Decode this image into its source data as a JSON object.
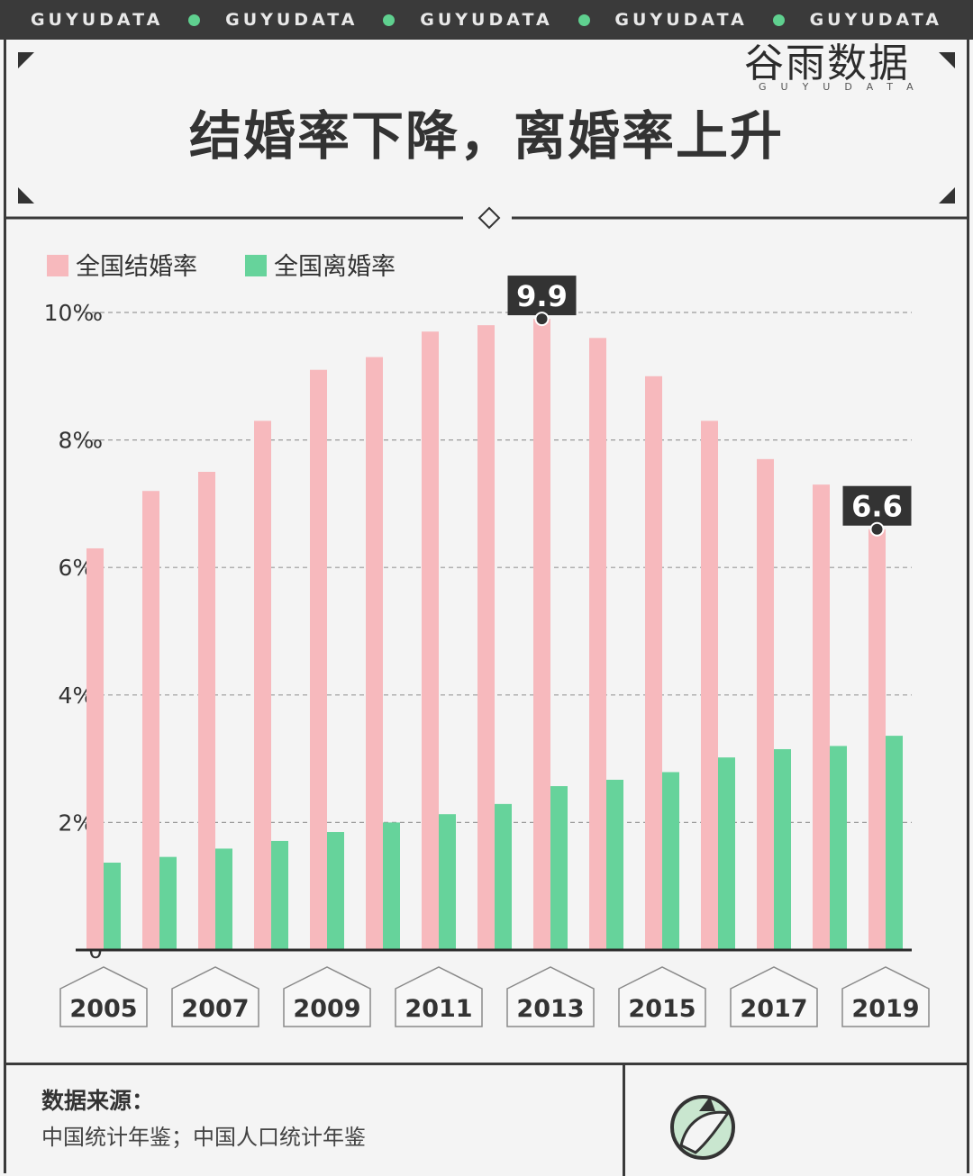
{
  "header": {
    "brand_items": [
      "GUYUDATA",
      "GUYUDATA",
      "GUYUDATA",
      "GUYUDATA",
      "GUYUDATA"
    ],
    "title": "结婚率下降，离婚率上升"
  },
  "chart_data": {
    "type": "bar",
    "x": [
      2005,
      2006,
      2007,
      2008,
      2009,
      2010,
      2011,
      2012,
      2013,
      2014,
      2015,
      2016,
      2017,
      2018,
      2019
    ],
    "x_tick_labels": [
      "2005",
      "2007",
      "2009",
      "2011",
      "2013",
      "2015",
      "2017",
      "2019"
    ],
    "series": [
      {
        "name": "全国结婚率",
        "color": "#f7b9bd",
        "values": [
          6.3,
          7.2,
          7.5,
          8.3,
          9.1,
          9.3,
          9.7,
          9.8,
          9.9,
          9.6,
          9.0,
          8.3,
          7.7,
          7.3,
          6.6
        ]
      },
      {
        "name": "全国离婚率",
        "color": "#66d39b",
        "values": [
          1.37,
          1.46,
          1.59,
          1.71,
          1.85,
          2.0,
          2.13,
          2.29,
          2.57,
          2.67,
          2.79,
          3.02,
          3.15,
          3.2,
          3.36
        ]
      }
    ],
    "y_tick_labels": [
      "0",
      "2‰",
      "4‰",
      "6‰",
      "8‰",
      "10‰"
    ],
    "y_ticks": [
      0,
      2,
      4,
      6,
      8,
      10
    ],
    "ylim": [
      0,
      10
    ],
    "grid": true,
    "legend_position": "top-left",
    "annotations": [
      {
        "label": "9.9",
        "year": 2013,
        "value": 9.9
      },
      {
        "label": "6.6",
        "year": 2019,
        "value": 6.6
      }
    ]
  },
  "footer": {
    "source_title": "数据来源：",
    "source_text": "中国统计年鉴；中国人口统计年鉴",
    "logo_name": "谷雨数据",
    "logo_sub": "GUYUDATA"
  }
}
